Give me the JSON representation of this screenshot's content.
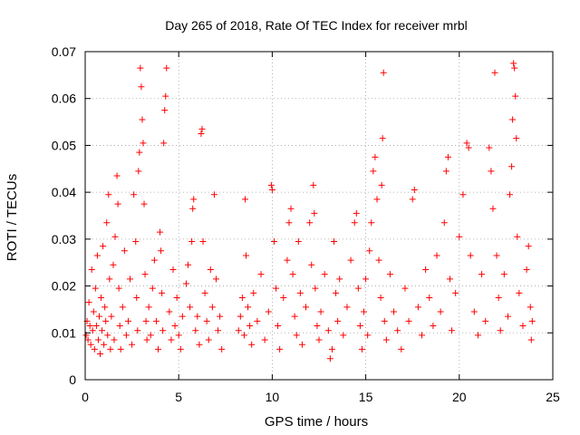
{
  "chart_data": {
    "type": "scatter",
    "title": "Day 265 of 2018, Rate Of TEC Index for receiver mrbl",
    "xlabel": "GPS time / hours",
    "ylabel": "ROTI / TECUs",
    "xlim": [
      0,
      25
    ],
    "ylim": [
      0,
      0.07
    ],
    "x_ticks": [
      0,
      5,
      10,
      15,
      20,
      25
    ],
    "x_tick_labels": [
      "0",
      "5",
      "10",
      "15",
      "20",
      "25"
    ],
    "y_ticks": [
      0,
      0.01,
      0.02,
      0.03,
      0.04,
      0.05,
      0.06,
      0.07
    ],
    "y_tick_labels": [
      "0",
      "0.01",
      "0.02",
      "0.03",
      "0.04",
      "0.05",
      "0.06",
      "0.07"
    ],
    "grid": true,
    "marker": "+",
    "marker_color": "#ff0000",
    "series": [
      {
        "points": [
          [
            0.05,
            0.0095
          ],
          [
            0.1,
            0.0125
          ],
          [
            0.15,
            0.0085
          ],
          [
            0.2,
            0.0165
          ],
          [
            0.25,
            0.0115
          ],
          [
            0.3,
            0.0075
          ],
          [
            0.35,
            0.0235
          ],
          [
            0.4,
            0.0105
          ],
          [
            0.45,
            0.0145
          ],
          [
            0.5,
            0.0065
          ],
          [
            0.55,
            0.0195
          ],
          [
            0.6,
            0.0115
          ],
          [
            0.65,
            0.0265
          ],
          [
            0.7,
            0.0085
          ],
          [
            0.75,
            0.0135
          ],
          [
            0.8,
            0.0055
          ],
          [
            0.85,
            0.0175
          ],
          [
            0.9,
            0.0105
          ],
          [
            0.95,
            0.0285
          ],
          [
            1.0,
            0.0075
          ],
          [
            1.05,
            0.0155
          ],
          [
            1.1,
            0.0125
          ],
          [
            1.15,
            0.0335
          ],
          [
            1.2,
            0.0095
          ],
          [
            1.25,
            0.0395
          ],
          [
            1.3,
            0.0215
          ],
          [
            1.35,
            0.0065
          ],
          [
            1.4,
            0.0135
          ],
          [
            1.5,
            0.0245
          ],
          [
            1.55,
            0.0085
          ],
          [
            1.6,
            0.0305
          ],
          [
            1.7,
            0.0435
          ],
          [
            1.75,
            0.0375
          ],
          [
            1.8,
            0.0195
          ],
          [
            1.85,
            0.0115
          ],
          [
            1.9,
            0.0065
          ],
          [
            2.0,
            0.0155
          ],
          [
            2.1,
            0.0275
          ],
          [
            2.2,
            0.0095
          ],
          [
            2.3,
            0.0125
          ],
          [
            2.4,
            0.0215
          ],
          [
            2.5,
            0.0075
          ],
          [
            2.6,
            0.0395
          ],
          [
            2.7,
            0.0295
          ],
          [
            2.75,
            0.0175
          ],
          [
            2.8,
            0.0105
          ],
          [
            2.85,
            0.0445
          ],
          [
            2.9,
            0.0485
          ],
          [
            2.95,
            0.0665
          ],
          [
            3.0,
            0.0625
          ],
          [
            3.05,
            0.0555
          ],
          [
            3.1,
            0.0505
          ],
          [
            3.15,
            0.0375
          ],
          [
            3.2,
            0.0225
          ],
          [
            3.25,
            0.0125
          ],
          [
            3.3,
            0.0085
          ],
          [
            3.4,
            0.0155
          ],
          [
            3.5,
            0.0095
          ],
          [
            3.6,
            0.0195
          ],
          [
            3.7,
            0.0255
          ],
          [
            3.8,
            0.0125
          ],
          [
            3.9,
            0.0065
          ],
          [
            4.0,
            0.0315
          ],
          [
            4.05,
            0.0275
          ],
          [
            4.1,
            0.0185
          ],
          [
            4.15,
            0.0105
          ],
          [
            4.2,
            0.0505
          ],
          [
            4.25,
            0.0575
          ],
          [
            4.3,
            0.0605
          ],
          [
            4.35,
            0.0665
          ],
          [
            4.5,
            0.0145
          ],
          [
            4.6,
            0.0085
          ],
          [
            4.7,
            0.0235
          ],
          [
            4.8,
            0.0115
          ],
          [
            4.9,
            0.0175
          ],
          [
            5.0,
            0.0095
          ],
          [
            5.1,
            0.0065
          ],
          [
            5.2,
            0.0135
          ],
          [
            5.4,
            0.0205
          ],
          [
            5.5,
            0.0245
          ],
          [
            5.6,
            0.0155
          ],
          [
            5.7,
            0.0295
          ],
          [
            5.75,
            0.0365
          ],
          [
            5.8,
            0.0385
          ],
          [
            5.9,
            0.0105
          ],
          [
            6.0,
            0.0135
          ],
          [
            6.1,
            0.0075
          ],
          [
            6.2,
            0.0525
          ],
          [
            6.25,
            0.0535
          ],
          [
            6.3,
            0.0295
          ],
          [
            6.4,
            0.0185
          ],
          [
            6.5,
            0.0125
          ],
          [
            6.6,
            0.0085
          ],
          [
            6.7,
            0.0235
          ],
          [
            6.8,
            0.0155
          ],
          [
            6.9,
            0.0395
          ],
          [
            7.0,
            0.0215
          ],
          [
            7.1,
            0.0105
          ],
          [
            7.2,
            0.0135
          ],
          [
            7.3,
            0.0065
          ],
          [
            8.2,
            0.0105
          ],
          [
            8.3,
            0.0135
          ],
          [
            8.4,
            0.0175
          ],
          [
            8.5,
            0.0095
          ],
          [
            8.55,
            0.0385
          ],
          [
            8.6,
            0.0265
          ],
          [
            8.7,
            0.0155
          ],
          [
            8.8,
            0.0115
          ],
          [
            8.9,
            0.0075
          ],
          [
            9.0,
            0.0185
          ],
          [
            9.2,
            0.0125
          ],
          [
            9.4,
            0.0225
          ],
          [
            9.6,
            0.0085
          ],
          [
            9.8,
            0.0145
          ],
          [
            9.95,
            0.0415
          ],
          [
            10.0,
            0.0405
          ],
          [
            10.1,
            0.0295
          ],
          [
            10.2,
            0.0195
          ],
          [
            10.3,
            0.0115
          ],
          [
            10.4,
            0.0065
          ],
          [
            10.6,
            0.0175
          ],
          [
            10.8,
            0.0255
          ],
          [
            10.9,
            0.0335
          ],
          [
            11.0,
            0.0365
          ],
          [
            11.1,
            0.0225
          ],
          [
            11.2,
            0.0135
          ],
          [
            11.3,
            0.0095
          ],
          [
            11.4,
            0.0295
          ],
          [
            11.5,
            0.0185
          ],
          [
            11.6,
            0.0075
          ],
          [
            11.8,
            0.0155
          ],
          [
            12.0,
            0.0335
          ],
          [
            12.1,
            0.0245
          ],
          [
            12.2,
            0.0415
          ],
          [
            12.25,
            0.0355
          ],
          [
            12.3,
            0.0195
          ],
          [
            12.4,
            0.0115
          ],
          [
            12.5,
            0.0085
          ],
          [
            12.6,
            0.0145
          ],
          [
            12.8,
            0.0225
          ],
          [
            13.0,
            0.0105
          ],
          [
            13.1,
            0.0045
          ],
          [
            13.2,
            0.0065
          ],
          [
            13.3,
            0.0295
          ],
          [
            13.4,
            0.0185
          ],
          [
            13.5,
            0.0125
          ],
          [
            13.6,
            0.0215
          ],
          [
            13.8,
            0.0095
          ],
          [
            14.0,
            0.0155
          ],
          [
            14.2,
            0.0255
          ],
          [
            14.4,
            0.0335
          ],
          [
            14.5,
            0.0355
          ],
          [
            14.6,
            0.0195
          ],
          [
            14.7,
            0.0115
          ],
          [
            14.8,
            0.0065
          ],
          [
            14.9,
            0.0145
          ],
          [
            15.0,
            0.0215
          ],
          [
            15.1,
            0.0095
          ],
          [
            15.2,
            0.0275
          ],
          [
            15.3,
            0.0335
          ],
          [
            15.4,
            0.0445
          ],
          [
            15.5,
            0.0475
          ],
          [
            15.6,
            0.0385
          ],
          [
            15.7,
            0.0255
          ],
          [
            15.8,
            0.0175
          ],
          [
            15.85,
            0.0415
          ],
          [
            15.9,
            0.0515
          ],
          [
            15.95,
            0.0655
          ],
          [
            16.0,
            0.0125
          ],
          [
            16.1,
            0.0085
          ],
          [
            16.3,
            0.0225
          ],
          [
            16.5,
            0.0145
          ],
          [
            16.7,
            0.0105
          ],
          [
            16.9,
            0.0065
          ],
          [
            17.1,
            0.0195
          ],
          [
            17.3,
            0.0125
          ],
          [
            17.5,
            0.0385
          ],
          [
            17.6,
            0.0405
          ],
          [
            17.8,
            0.0155
          ],
          [
            18.0,
            0.0095
          ],
          [
            18.2,
            0.0235
          ],
          [
            18.4,
            0.0175
          ],
          [
            18.6,
            0.0115
          ],
          [
            18.8,
            0.0265
          ],
          [
            19.0,
            0.0145
          ],
          [
            19.2,
            0.0335
          ],
          [
            19.3,
            0.0445
          ],
          [
            19.4,
            0.0475
          ],
          [
            19.5,
            0.0215
          ],
          [
            19.6,
            0.0105
          ],
          [
            19.8,
            0.0185
          ],
          [
            20.0,
            0.0305
          ],
          [
            20.2,
            0.0395
          ],
          [
            20.4,
            0.0505
          ],
          [
            20.5,
            0.0495
          ],
          [
            20.6,
            0.0265
          ],
          [
            20.8,
            0.0145
          ],
          [
            21.0,
            0.0095
          ],
          [
            21.2,
            0.0225
          ],
          [
            21.4,
            0.0125
          ],
          [
            21.6,
            0.0495
          ],
          [
            21.7,
            0.0445
          ],
          [
            21.8,
            0.0365
          ],
          [
            21.9,
            0.0655
          ],
          [
            22.0,
            0.0265
          ],
          [
            22.1,
            0.0175
          ],
          [
            22.2,
            0.0105
          ],
          [
            22.4,
            0.0225
          ],
          [
            22.6,
            0.0135
          ],
          [
            22.7,
            0.0395
          ],
          [
            22.8,
            0.0455
          ],
          [
            22.85,
            0.0555
          ],
          [
            22.9,
            0.0675
          ],
          [
            22.95,
            0.0665
          ],
          [
            23.0,
            0.0605
          ],
          [
            23.05,
            0.0515
          ],
          [
            23.1,
            0.0305
          ],
          [
            23.2,
            0.0185
          ],
          [
            23.4,
            0.0115
          ],
          [
            23.6,
            0.0235
          ],
          [
            23.7,
            0.0285
          ],
          [
            23.8,
            0.0155
          ],
          [
            23.85,
            0.0085
          ],
          [
            23.9,
            0.0125
          ]
        ]
      }
    ]
  }
}
